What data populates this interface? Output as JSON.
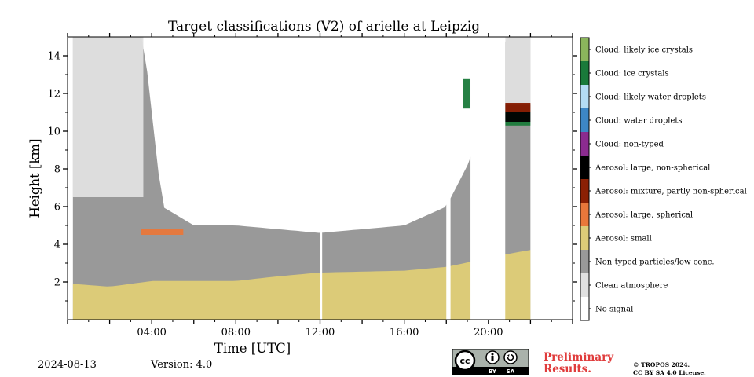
{
  "page": {
    "date": "2024-08-13",
    "version": "Version: 4.0",
    "preliminary": "Preliminary Results.",
    "copyright_line1": "© TROPOS 2024.",
    "copyright_line2": "CC BY SA 4.0 License.",
    "license_badge": {
      "cc": "cc",
      "by": "BY",
      "sa": "SA"
    }
  },
  "chart_data": {
    "type": "heatmap",
    "title": "Target classifications (V2) of arielle at Leipzig",
    "xlabel": "Time [UTC]",
    "ylabel": "Height [km]",
    "xlim_hours": [
      0,
      24
    ],
    "ylim_km": [
      0,
      15
    ],
    "x_ticks": [
      {
        "value": 4,
        "label": "04:00"
      },
      {
        "value": 8,
        "label": "08:00"
      },
      {
        "value": 12,
        "label": "12:00"
      },
      {
        "value": 16,
        "label": "16:00"
      },
      {
        "value": 20,
        "label": "20:00"
      }
    ],
    "y_ticks": [
      {
        "value": 2,
        "label": "2"
      },
      {
        "value": 4,
        "label": "4"
      },
      {
        "value": 6,
        "label": "6"
      },
      {
        "value": 8,
        "label": "8"
      },
      {
        "value": 10,
        "label": "10"
      },
      {
        "value": 12,
        "label": "12"
      },
      {
        "value": 14,
        "label": "14"
      }
    ],
    "grid": false,
    "legend_position": "right colorbar",
    "classes": [
      {
        "label": "No signal",
        "color": "#ffffff"
      },
      {
        "label": "Clean atmosphere",
        "color": "#e0e0e0"
      },
      {
        "label": "Non-typed particles/low conc.",
        "color": "#999999"
      },
      {
        "label": "Aerosol: small",
        "color": "#dccb78"
      },
      {
        "label": "Aerosol: large, spherical",
        "color": "#e8773a"
      },
      {
        "label": "Aerosol: mixture, partly non-spherical",
        "color": "#8b2004"
      },
      {
        "label": "Aerosol: large, non-spherical",
        "color": "#000000"
      },
      {
        "label": "Cloud: non-typed",
        "color": "#8b2b8f"
      },
      {
        "label": "Cloud: water droplets",
        "color": "#3d87c6"
      },
      {
        "label": "Cloud: likely water droplets",
        "color": "#b4dcf4"
      },
      {
        "label": "Cloud: ice crystals",
        "color": "#1a7a3a"
      },
      {
        "label": "Cloud: likely ice crystals",
        "color": "#8bb55c"
      }
    ],
    "data_gaps_hours": [
      [
        0,
        0.25
      ],
      [
        12.0,
        12.1
      ],
      [
        18.0,
        18.2
      ],
      [
        19.15,
        20.8
      ],
      [
        22.0,
        24
      ]
    ],
    "regions": [
      {
        "class": "Aerosol: small",
        "from_h": 0.25,
        "to_h": 22.0,
        "layer_top_km": [
          [
            0.25,
            1.9
          ],
          [
            2,
            1.75
          ],
          [
            4,
            2.05
          ],
          [
            8,
            2.05
          ],
          [
            10,
            2.3
          ],
          [
            12,
            2.5
          ],
          [
            16,
            2.6
          ],
          [
            18,
            2.8
          ],
          [
            21,
            3.5
          ],
          [
            22,
            3.7
          ]
        ]
      },
      {
        "class": "Non-typed particles/low conc.",
        "from_h": 0.25,
        "to_h": 22.0,
        "layer_top_km": [
          [
            0.25,
            15
          ],
          [
            3.6,
            15
          ],
          [
            4.5,
            6
          ],
          [
            6,
            5
          ],
          [
            8,
            5
          ],
          [
            12,
            4.6
          ],
          [
            16,
            5
          ],
          [
            18,
            6
          ],
          [
            19.15,
            8.5
          ],
          [
            20.8,
            15
          ],
          [
            22.0,
            15
          ]
        ]
      },
      {
        "class": "Clean atmosphere",
        "from_h": 0.25,
        "to_h": 3.6,
        "bottom_km": 6.5,
        "top_km": 15
      },
      {
        "class": "Clean atmosphere",
        "from_h": 20.8,
        "to_h": 22.0,
        "bottom_km": 11.5,
        "top_km": 15
      },
      {
        "class": "Cloud: ice crystals",
        "from_h": 18.8,
        "to_h": 19.15,
        "bottom_km": 11.2,
        "top_km": 12.8
      },
      {
        "class": "Cloud: ice crystals",
        "from_h": 20.8,
        "to_h": 22.0,
        "bottom_km": 10.3,
        "top_km": 11.1
      },
      {
        "class": "Aerosol: large, non-spherical",
        "from_h": 20.8,
        "to_h": 22.0,
        "bottom_km": 10.5,
        "top_km": 11.4
      },
      {
        "class": "Aerosol: mixture, partly non-spherical",
        "from_h": 20.8,
        "to_h": 22.0,
        "bottom_km": 11.0,
        "top_km": 11.5
      },
      {
        "class": "Aerosol: large, spherical",
        "from_h": 3.5,
        "to_h": 5.5,
        "bottom_km": 4.5,
        "top_km": 4.8
      }
    ]
  }
}
